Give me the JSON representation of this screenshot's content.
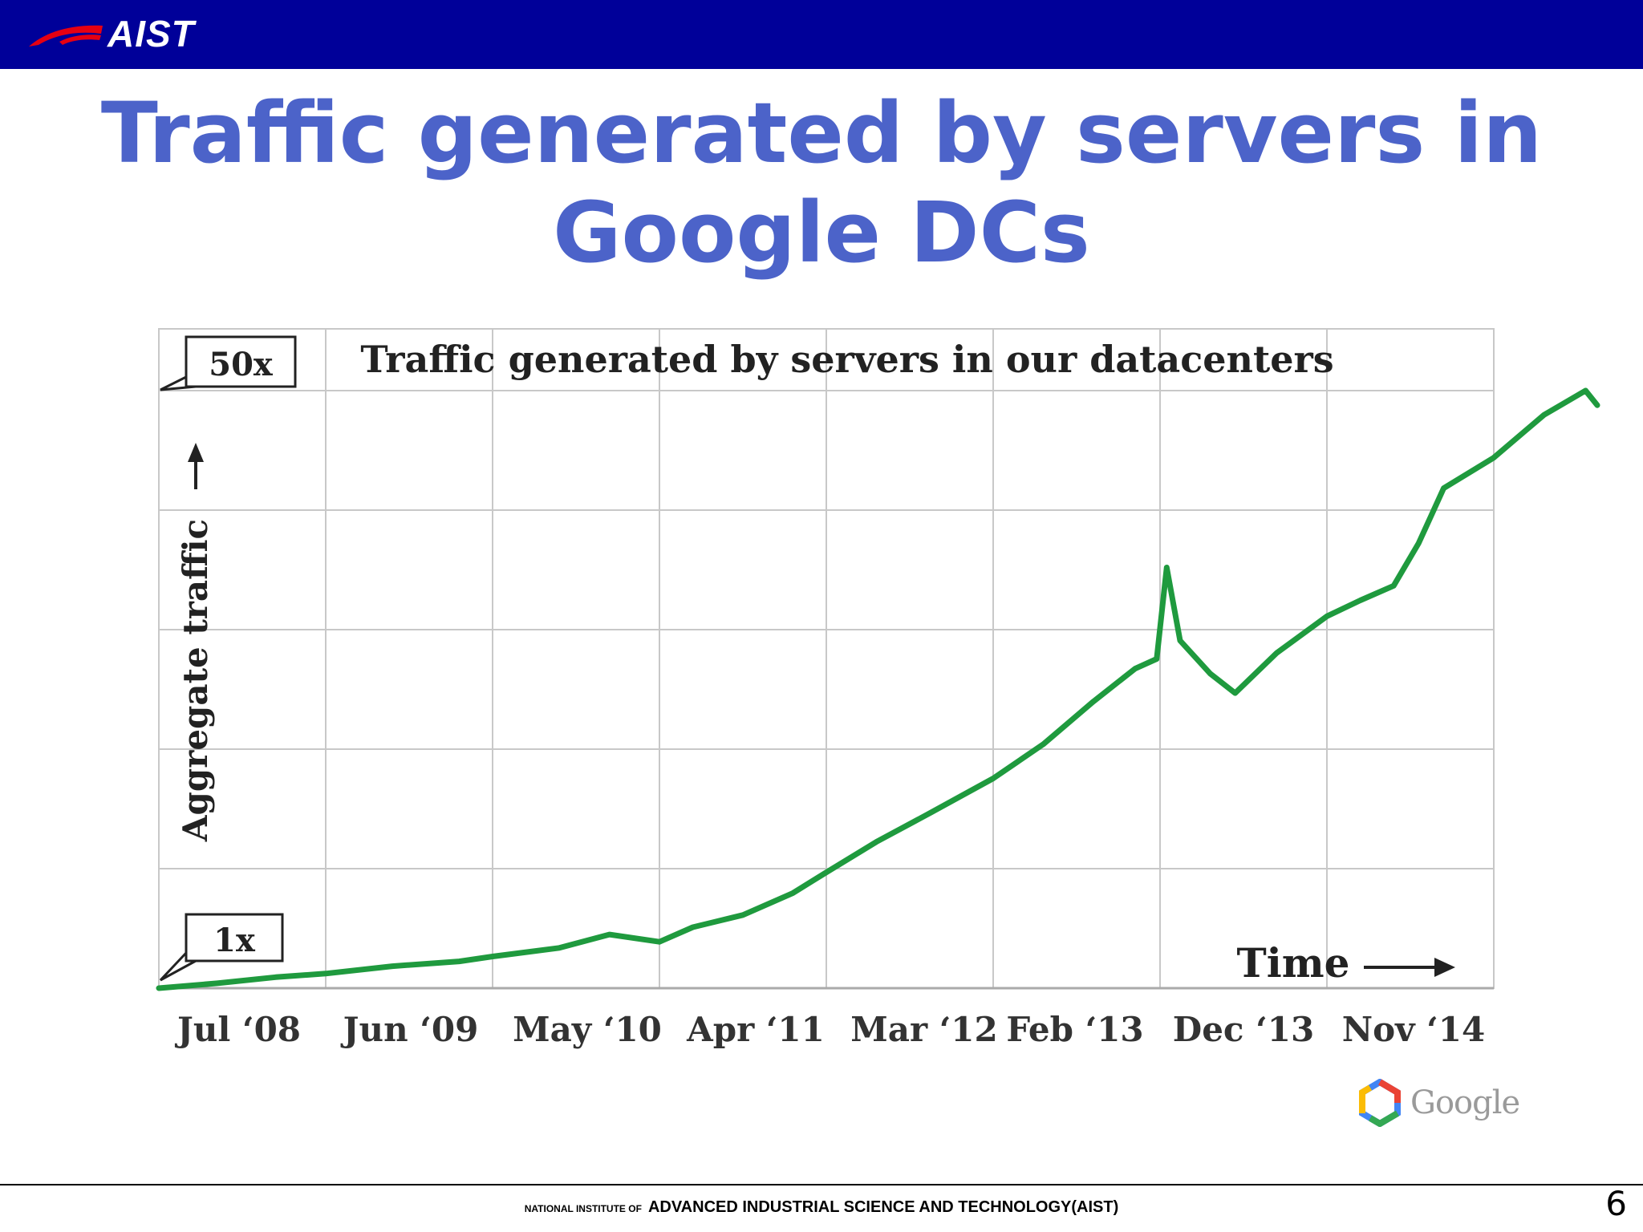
{
  "header": {
    "logo_text": "AIST",
    "bar_color": "#000099",
    "logo_swoosh_color": "#e60012"
  },
  "slide": {
    "title_line1": "Traffic generated by servers in",
    "title_line2": "Google DCs",
    "title_color": "#4c63c9"
  },
  "chart_data": {
    "type": "line",
    "title": "Traffic generated by servers in our datacenters",
    "ylabel": "Aggregate traffic",
    "xlabel": "Time",
    "y_scale_callouts": [
      "50x",
      "1x"
    ],
    "ylim": [
      1,
      50
    ],
    "categories": [
      "Jul ‘08",
      "Jun ‘09",
      "May ‘10",
      "Apr ‘11",
      "Mar ‘12",
      "Feb ‘13",
      "Dec ‘13",
      "Nov ‘14"
    ],
    "grid": true,
    "legend": "none",
    "series": [
      {
        "color": "#1f9a3e",
        "x": [
          "Jul ‘08",
          "Jun ‘09",
          "May ‘10",
          "Apr ‘11",
          "Mar ‘12",
          "Feb ‘13",
          "Dec ‘13",
          "Nov ‘14"
        ],
        "points": [
          [
            0.0,
            1.0
          ],
          [
            0.35,
            1.4
          ],
          [
            0.7,
            1.9
          ],
          [
            1.0,
            2.2
          ],
          [
            1.4,
            2.8
          ],
          [
            1.8,
            3.2
          ],
          [
            2.0,
            3.6
          ],
          [
            2.4,
            4.3
          ],
          [
            2.7,
            5.4
          ],
          [
            3.0,
            4.8
          ],
          [
            3.2,
            6.0
          ],
          [
            3.5,
            7.0
          ],
          [
            3.8,
            8.8
          ],
          [
            4.0,
            10.5
          ],
          [
            4.3,
            13.0
          ],
          [
            4.6,
            15.2
          ],
          [
            5.0,
            18.2
          ],
          [
            5.3,
            21.0
          ],
          [
            5.6,
            24.5
          ],
          [
            5.85,
            27.2
          ],
          [
            5.98,
            28.0
          ],
          [
            6.04,
            35.5
          ],
          [
            6.12,
            29.5
          ],
          [
            6.3,
            26.8
          ],
          [
            6.45,
            25.2
          ],
          [
            6.7,
            28.5
          ],
          [
            7.0,
            31.5
          ],
          [
            7.2,
            32.8
          ],
          [
            7.4,
            34.0
          ],
          [
            7.55,
            37.5
          ],
          [
            7.7,
            42.0
          ],
          [
            8.0,
            44.5
          ],
          [
            8.3,
            48.0
          ],
          [
            8.55,
            50.0
          ],
          [
            8.62,
            48.8
          ]
        ]
      }
    ]
  },
  "google_badge": {
    "text": "Google"
  },
  "footer": {
    "small": "NATIONAL INSTITUTE OF",
    "big": "ADVANCED INDUSTRIAL SCIENCE AND TECHNOLOGY",
    "abbr": "(AIST)",
    "page_number": "6"
  }
}
